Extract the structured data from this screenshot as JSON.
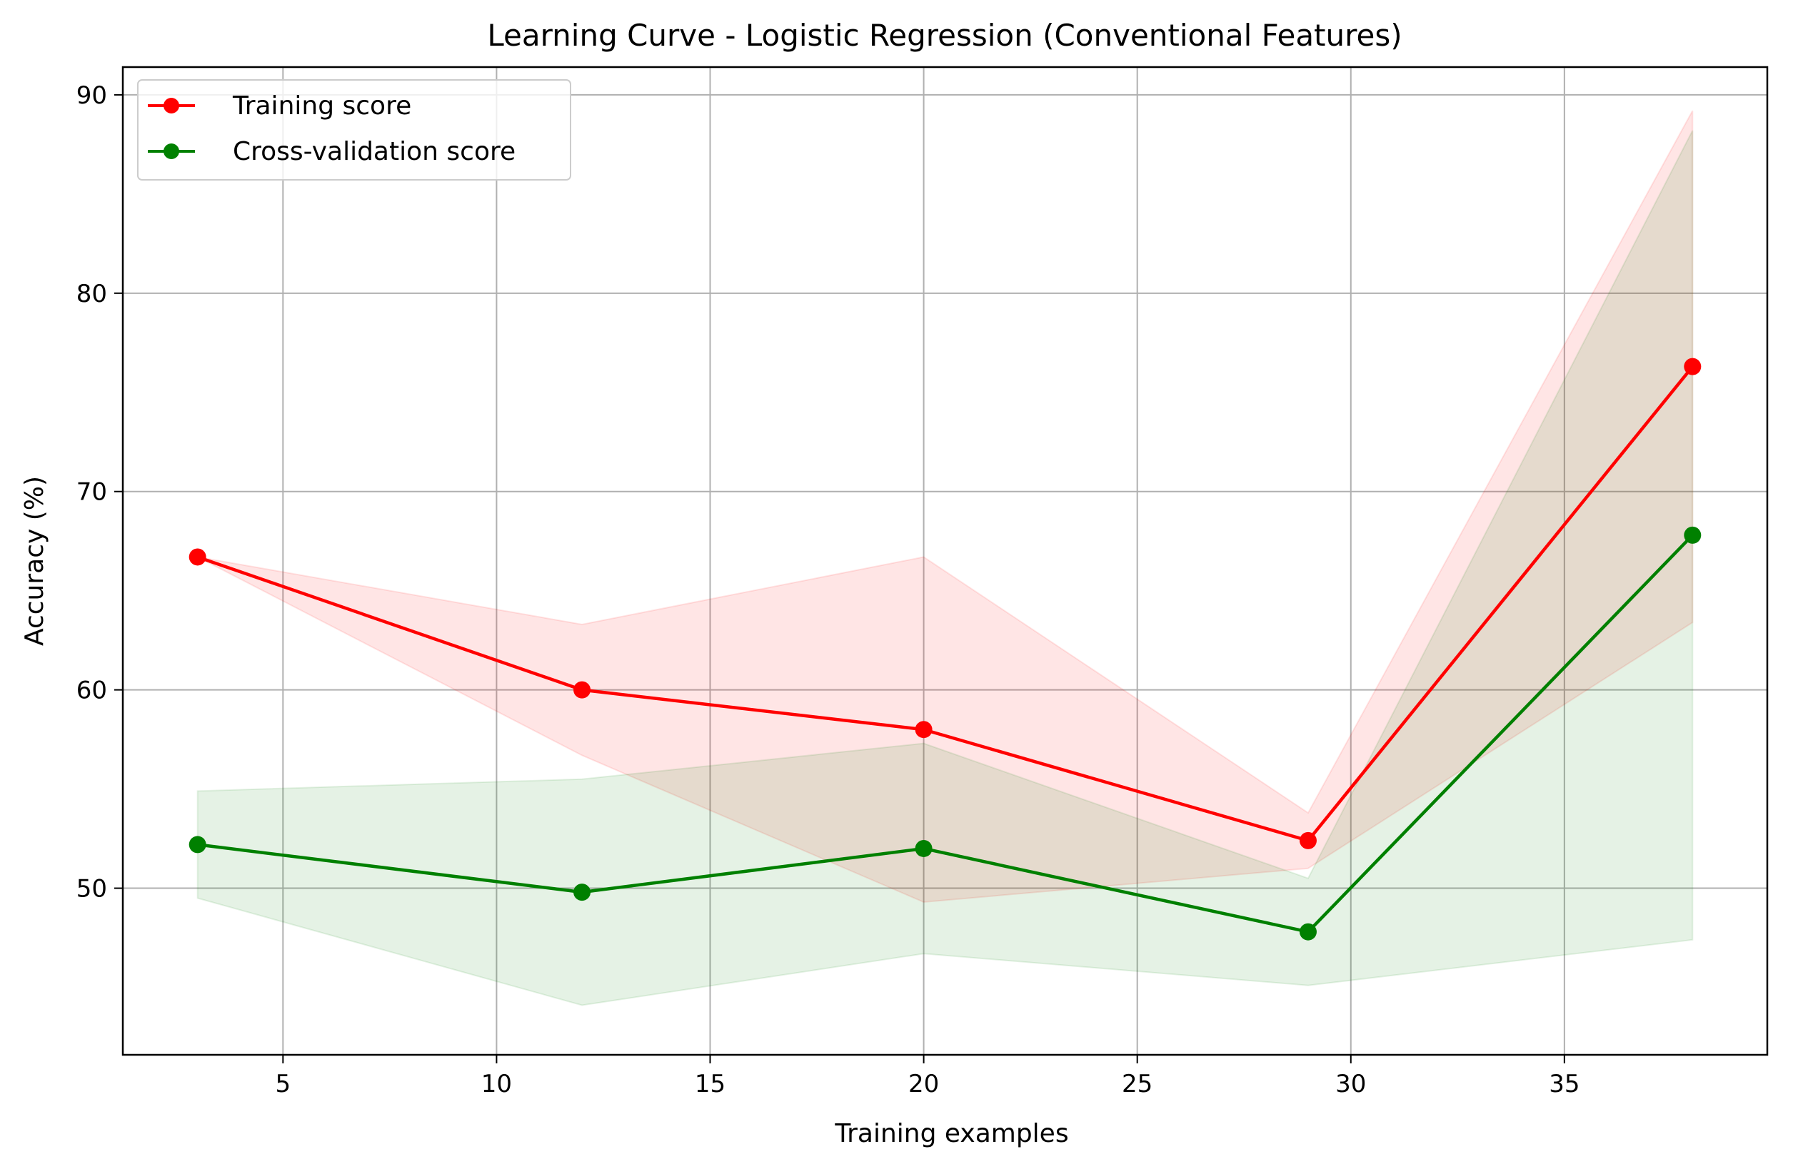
{
  "chart_data": {
    "type": "line",
    "title": "Learning Curve - Logistic Regression (Conventional Features)",
    "xlabel": "Training examples",
    "ylabel": "Accuracy (%)",
    "xlim": [
      1.25,
      39.75
    ],
    "ylim": [
      41.6,
      91.4
    ],
    "xticks": [
      5,
      10,
      15,
      20,
      25,
      30,
      35
    ],
    "yticks": [
      50,
      60,
      70,
      80,
      90
    ],
    "grid": true,
    "legend_position": "top-left",
    "x": [
      3,
      12,
      20,
      29,
      38
    ],
    "series": [
      {
        "name": "Training score",
        "color": "#ff0000",
        "band_color": "#ffdddd",
        "values": [
          66.7,
          60.0,
          58.0,
          52.4,
          76.3
        ],
        "lower": [
          66.7,
          56.7,
          49.3,
          51.0,
          63.4
        ],
        "upper": [
          66.7,
          63.3,
          66.7,
          53.8,
          89.2
        ]
      },
      {
        "name": "Cross-validation score",
        "color": "#008000",
        "band_color": "#e6f2e6",
        "values": [
          52.2,
          49.8,
          52.0,
          47.8,
          67.8
        ],
        "lower": [
          49.5,
          44.1,
          46.7,
          45.1,
          47.4
        ],
        "upper": [
          54.9,
          55.5,
          57.3,
          50.5,
          88.2
        ]
      }
    ]
  }
}
